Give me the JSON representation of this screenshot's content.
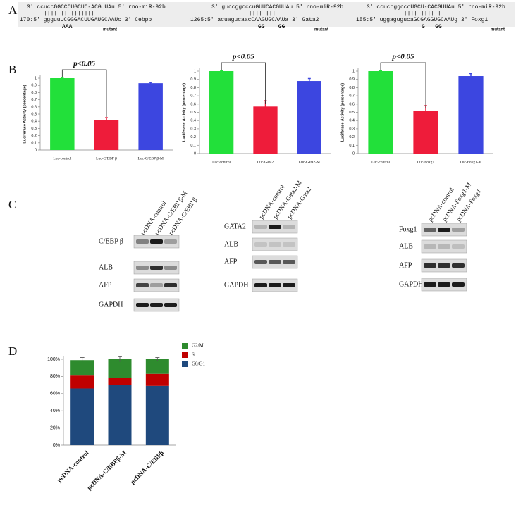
{
  "panel_labels": [
    "A",
    "B",
    "C",
    "D"
  ],
  "alignments": [
    {
      "mirna_line": "3' ccuccGGCCCUGCUC-ACGUUAu 5' rno-miR-92b",
      "pairing": "     ||||||| |||||||",
      "target_line": "170:5' ggguuUCGGGACUUGAUGCAAUc 3' Cebpb",
      "mutation": "AAA",
      "mutant_label": "mutant"
    },
    {
      "mirna_line": "3' guccggcccuGUUCACGUUAu 5' rno-miR-92b",
      "pairing": "           ||||||||",
      "target_line": "1265:5' acuagucaacCAAGUGCAAUa 3' Gata2",
      "mutation": "GG    GG",
      "mutant_label": "mutant"
    },
    {
      "mirna_line": "3' ccuccggcccUGCU-CACGUUAu 5' rno-miR-92b",
      "pairing": "           |||| ||||||",
      "target_line": "155:5' uggagugucaGCGAGGUGCAAUg 3' Foxg1",
      "mutation": "G   GG",
      "mutant_label": "mutant"
    }
  ],
  "blots": [
    {
      "lanes": [
        "pcDNA-control",
        "pcDNA-C/EBP β-M",
        "pcDNA-C/EBP β"
      ],
      "proteins": [
        "C/EBP β",
        "ALB",
        "AFP",
        "GAPDH"
      ]
    },
    {
      "lanes": [
        "pcDNA-control",
        "pcDNA-Gata2-M",
        "pcDNA-Gata2"
      ],
      "proteins": [
        "GATA2",
        "ALB",
        "AFP",
        "GAPDH"
      ]
    },
    {
      "lanes": [
        "pcDNA-control",
        "pcDNA-Foxg1-M",
        "pcDNA-Foxg1"
      ],
      "proteins": [
        "Foxg1",
        "ALB",
        "AFP",
        "GAPDH"
      ]
    }
  ],
  "chart_data": [
    {
      "type": "bar",
      "ylabel": "Luciferase Activity (percentage)",
      "annotation": "p<0.05",
      "categories": [
        "Luc-control",
        "Luc-C/EBP β",
        "Luc-C/EBP β-M"
      ],
      "values": [
        1,
        0.42,
        0.93
      ],
      "errors": [
        0.005,
        0.03,
        0.01
      ],
      "colors": [
        "#22e03a",
        "#ee1c3a",
        "#3c46e0"
      ],
      "ylim": [
        0,
        1
      ],
      "yticks": [
        0,
        0.1,
        0.2,
        0.3,
        0.4,
        0.5,
        0.6,
        0.7,
        0.8,
        0.9,
        1
      ]
    },
    {
      "type": "bar",
      "ylabel": "Luciferase Activity (percentage)",
      "annotation": "p<0.05",
      "categories": [
        "Luc-control",
        "Luc-Gata2",
        "Luc-Gata2-M"
      ],
      "values": [
        1,
        0.57,
        0.88
      ],
      "errors": [
        0.005,
        0.07,
        0.03
      ],
      "colors": [
        "#22e03a",
        "#ee1c3a",
        "#3c46e0"
      ],
      "ylim": [
        0,
        1
      ],
      "yticks": [
        0,
        0.1,
        0.2,
        0.3,
        0.4,
        0.5,
        0.6,
        0.7,
        0.8,
        0.9,
        1
      ]
    },
    {
      "type": "bar",
      "ylabel": "Luciferase Activity (percentage)",
      "annotation": "p<0.05",
      "categories": [
        "Luc-control",
        "Luc-Foxg1",
        "Luc-Foxg1-M"
      ],
      "values": [
        1,
        0.52,
        0.94
      ],
      "errors": [
        0.005,
        0.06,
        0.03
      ],
      "colors": [
        "#22e03a",
        "#ee1c3a",
        "#3c46e0"
      ],
      "ylim": [
        0,
        1
      ],
      "yticks": [
        0,
        0.1,
        0.2,
        0.3,
        0.4,
        0.5,
        0.6,
        0.7,
        0.8,
        0.9,
        1
      ]
    },
    {
      "type": "stacked_bar",
      "categories": [
        "pcDNA-control",
        "pcDNA-C/EBPβ-M",
        "pcDNA-C/EBPβ"
      ],
      "series": [
        {
          "name": "G0/G1",
          "color": "#1f497d",
          "values": [
            66,
            70,
            69
          ]
        },
        {
          "name": "S",
          "color": "#c00000",
          "values": [
            15,
            8,
            14
          ]
        },
        {
          "name": "G2/M",
          "color": "#2e8b2e",
          "values": [
            18,
            22,
            17
          ],
          "errors": [
            3,
            3,
            2
          ]
        }
      ],
      "ylim": [
        0,
        100
      ],
      "yticks": [
        {
          "value": 0,
          "label": "0%"
        },
        {
          "value": 20,
          "label": "20%"
        },
        {
          "value": 40,
          "label": "40%"
        },
        {
          "value": 60,
          "label": "60%"
        },
        {
          "value": 80,
          "label": "80%"
        },
        {
          "value": 100,
          "label": "100%"
        }
      ]
    }
  ]
}
